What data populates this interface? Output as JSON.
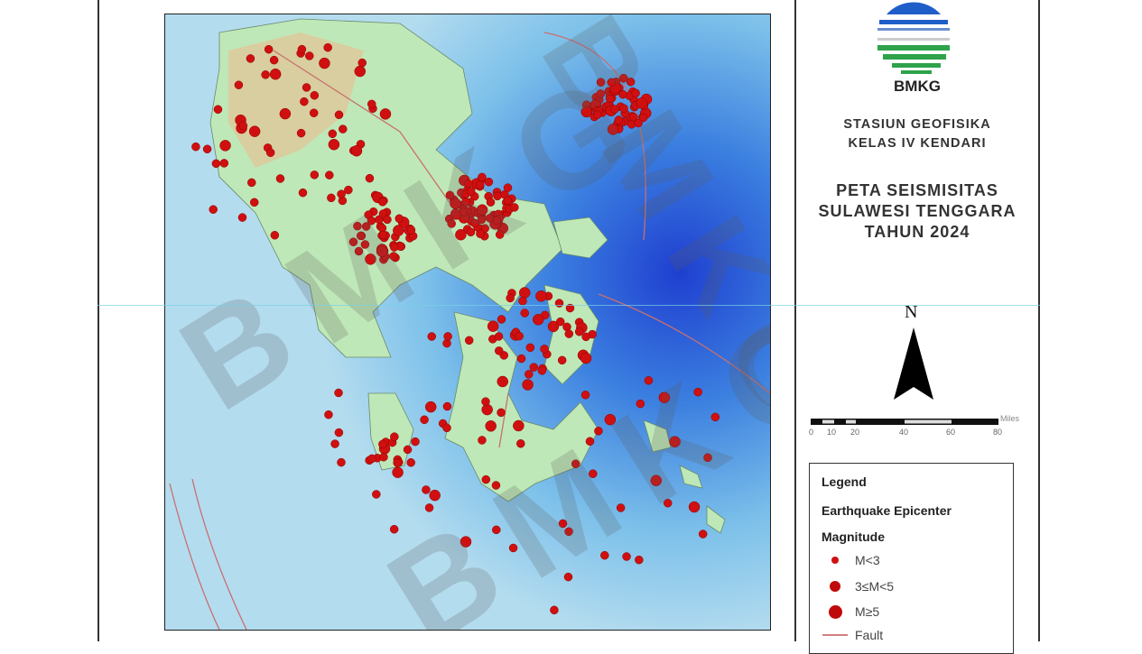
{
  "header": {
    "logo_text": "BMKG",
    "station_line1": "STASIUN GEOFISIKA",
    "station_line2": "KELAS IV KENDARI",
    "title_line1": "PETA SEISMISITAS",
    "title_line2": "SULAWESI TENGGARA",
    "title_line3": "TAHUN 2024"
  },
  "north_arrow": {
    "label": "N"
  },
  "scale_bar": {
    "unit": "Miles",
    "ticks": [
      "0",
      "10",
      "20",
      "40",
      "60",
      "80"
    ]
  },
  "legend": {
    "title": "Legend",
    "subtitle": "Earthquake Epicenter",
    "group": "Magnitude",
    "items": [
      {
        "label": "M<3",
        "color": "#d01010"
      },
      {
        "label": "3≤M<5",
        "color": "#c00a0a"
      },
      {
        "label": "M≥5",
        "color": "#c00a0a"
      },
      {
        "label": "Fault",
        "color": "#d08080"
      }
    ]
  },
  "watermark": "BMKG",
  "colors": {
    "sea_deep": "#1f4fd8",
    "sea_shallow": "#a8d8ec",
    "land": "#b9e6b4",
    "highland": "#d9c79a",
    "epicenter": "#d01010"
  }
}
